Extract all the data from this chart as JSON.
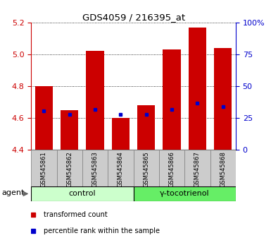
{
  "title": "GDS4059 / 216395_at",
  "samples": [
    "GSM545861",
    "GSM545862",
    "GSM545863",
    "GSM545864",
    "GSM545865",
    "GSM545866",
    "GSM545867",
    "GSM545868"
  ],
  "bar_tops": [
    4.8,
    4.65,
    5.02,
    4.6,
    4.68,
    5.03,
    5.17,
    5.04
  ],
  "bar_bottoms": [
    4.4,
    4.4,
    4.4,
    4.4,
    4.4,
    4.4,
    4.4,
    4.4
  ],
  "blue_markers": [
    4.645,
    4.625,
    4.655,
    4.625,
    4.625,
    4.655,
    4.695,
    4.67
  ],
  "bar_color": "#cc0000",
  "blue_color": "#0000cc",
  "ylim_left": [
    4.4,
    5.2
  ],
  "yticks_left": [
    4.4,
    4.6,
    4.8,
    5.0,
    5.2
  ],
  "yticks_right": [
    0,
    25,
    50,
    75,
    100
  ],
  "ylabel_left_color": "#cc0000",
  "ylabel_right_color": "#0000cc",
  "groups": [
    {
      "label": "control",
      "samples": [
        0,
        1,
        2,
        3
      ],
      "color": "#ccffcc"
    },
    {
      "label": "γ-tocotrienol",
      "samples": [
        4,
        5,
        6,
        7
      ],
      "color": "#66ee66"
    }
  ],
  "agent_label": "agent",
  "legend_items": [
    {
      "color": "#cc0000",
      "label": "transformed count"
    },
    {
      "color": "#0000cc",
      "label": "percentile rank within the sample"
    }
  ],
  "bar_color_dark": "#bb0000",
  "xlabel_bg": "#cccccc",
  "xlabel_border": "#888888",
  "bar_width": 0.7,
  "xlim": [
    -0.5,
    7.5
  ]
}
